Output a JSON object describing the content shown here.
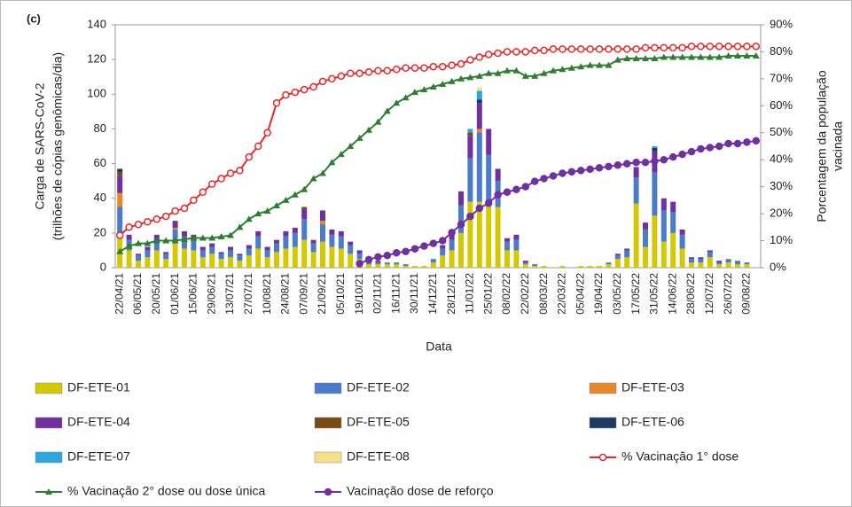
{
  "chart_data": {
    "type": "bar",
    "stacked": true,
    "title": "(c)",
    "xlabel": "Data",
    "ylabel": [
      "Carga de SARS-CoV-2",
      "(trilhões de cópias genômicas/dia)"
    ],
    "y2label": [
      "Porcentagem da população",
      "vacinada"
    ],
    "categories": [
      "22/04/21",
      null,
      "06/05/21",
      null,
      "20/05/21",
      null,
      "01/06/21",
      null,
      "15/06/21",
      null,
      "29/06/21",
      null,
      "13/07/21",
      null,
      "27/07/21",
      null,
      "10/08/21",
      null,
      "24/08/21",
      null,
      "07/09/21",
      null,
      "21/09/21",
      null,
      "05/10/21",
      null,
      "19/10/21",
      null,
      "02/11/21",
      null,
      "16/11/21",
      null,
      "30/11/21",
      null,
      "14/12/21",
      null,
      "28/12/21",
      null,
      "11/01/22",
      null,
      "25/01/22",
      null,
      "08/02/22",
      null,
      "22/02/22",
      null,
      "08/03/22",
      null,
      "22/03/22",
      null,
      "05/04/22",
      null,
      "19/04/22",
      null,
      "03/05/22",
      null,
      "17/05/22",
      null,
      "31/05/22",
      null,
      "14/06/22",
      null,
      "28/06/22",
      null,
      "12/07/22",
      null,
      "26/07/22",
      null,
      "09/08/22",
      null
    ],
    "ylim": [
      0,
      140
    ],
    "yticks": [
      0,
      20,
      40,
      60,
      80,
      100,
      120,
      140
    ],
    "y2lim": [
      0,
      90
    ],
    "y2ticks": [
      {
        "value": 0,
        "label": "0%"
      },
      {
        "value": 10,
        "label": "10%"
      },
      {
        "value": 20,
        "label": "20%"
      },
      {
        "value": 30,
        "label": "30%"
      },
      {
        "value": 40,
        "label": "40%"
      },
      {
        "value": 50,
        "label": "50%"
      },
      {
        "value": 60,
        "label": "60%"
      },
      {
        "value": 70,
        "label": "70%"
      },
      {
        "value": 80,
        "label": "80%"
      },
      {
        "value": 90,
        "label": "90%"
      }
    ],
    "series": [
      {
        "name": "DF-ETE-01",
        "color": "#d4c800",
        "values": [
          20,
          10,
          4,
          6,
          10,
          5,
          14,
          11,
          10,
          6,
          8,
          5,
          6,
          4,
          7,
          11,
          6,
          9,
          11,
          12,
          16,
          9,
          15,
          12,
          11,
          8,
          5,
          2,
          2,
          2,
          2,
          1,
          1,
          1,
          3,
          7,
          10,
          20,
          38,
          38,
          35,
          35,
          10,
          10,
          2,
          1,
          1,
          0,
          1,
          0,
          1,
          1,
          1,
          2,
          5,
          6,
          37,
          12,
          30,
          15,
          20,
          11,
          3,
          3,
          6,
          2,
          3,
          2,
          2,
          0
        ]
      },
      {
        "name": "DF-ETE-02",
        "color": "#4a7cc9",
        "values": [
          15,
          6,
          3,
          4,
          6,
          3,
          8,
          7,
          6,
          4,
          4,
          3,
          4,
          3,
          4,
          7,
          4,
          5,
          7,
          8,
          12,
          5,
          10,
          7,
          7,
          5,
          3,
          1,
          1,
          1,
          1,
          1,
          0,
          0,
          2,
          4,
          6,
          16,
          25,
          40,
          30,
          15,
          5,
          6,
          1,
          1,
          0,
          0,
          0,
          0,
          0,
          0,
          0,
          1,
          2,
          4,
          15,
          10,
          25,
          18,
          12,
          8,
          2,
          2,
          3,
          1,
          2,
          2,
          1,
          0
        ]
      },
      {
        "name": "DF-ETE-03",
        "color": "#e8862a",
        "values": [
          8,
          0,
          0,
          0,
          0,
          0,
          1,
          0,
          0,
          0,
          0,
          0,
          0,
          0,
          0,
          0,
          0,
          0,
          0,
          0,
          0,
          0,
          2,
          0,
          0,
          0,
          0,
          0,
          0,
          0,
          0,
          0,
          0,
          0,
          0,
          0,
          0,
          0,
          0,
          2,
          0,
          0,
          0,
          0,
          0,
          0,
          0,
          0,
          0,
          0,
          0,
          0,
          0,
          0,
          0,
          0,
          0,
          0,
          0,
          0,
          0,
          0,
          0,
          0,
          0,
          0,
          0,
          0,
          0,
          0
        ]
      },
      {
        "name": "DF-ETE-04",
        "color": "#7030a0",
        "values": [
          10,
          3,
          1,
          2,
          3,
          1,
          4,
          3,
          3,
          2,
          2,
          1,
          2,
          1,
          2,
          3,
          2,
          2,
          3,
          3,
          6,
          2,
          6,
          3,
          3,
          2,
          2,
          0,
          1,
          0,
          0,
          0,
          0,
          0,
          0,
          2,
          3,
          8,
          13,
          15,
          15,
          7,
          2,
          3,
          1,
          0,
          0,
          0,
          0,
          0,
          0,
          0,
          0,
          0,
          1,
          1,
          6,
          4,
          12,
          7,
          6,
          3,
          1,
          1,
          1,
          1,
          0,
          0,
          0,
          0
        ]
      },
      {
        "name": "DF-ETE-05",
        "color": "#7b4a12",
        "values": [
          2,
          0,
          0,
          0,
          0,
          0,
          0,
          0,
          0,
          0,
          0,
          0,
          0,
          0,
          0,
          0,
          0,
          0,
          0,
          0,
          1,
          0,
          0,
          0,
          0,
          0,
          0,
          0,
          0,
          0,
          0,
          0,
          0,
          0,
          0,
          0,
          0,
          0,
          2,
          0,
          0,
          0,
          0,
          0,
          0,
          0,
          0,
          0,
          0,
          0,
          0,
          0,
          0,
          0,
          0,
          0,
          0,
          0,
          0,
          0,
          0,
          0,
          0,
          0,
          0,
          0,
          0,
          0,
          0,
          0
        ]
      },
      {
        "name": "DF-ETE-06",
        "color": "#1f3864",
        "values": [
          2,
          0,
          0,
          0,
          0,
          0,
          0,
          0,
          0,
          0,
          0,
          0,
          0,
          0,
          0,
          0,
          0,
          0,
          0,
          0,
          0,
          0,
          0,
          0,
          0,
          0,
          0,
          0,
          0,
          0,
          0,
          0,
          0,
          0,
          0,
          0,
          0,
          0,
          0,
          2,
          0,
          0,
          0,
          0,
          0,
          0,
          0,
          0,
          0,
          0,
          0,
          0,
          0,
          0,
          0,
          0,
          0,
          0,
          2,
          0,
          0,
          0,
          0,
          0,
          0,
          0,
          0,
          0,
          0,
          0
        ]
      },
      {
        "name": "DF-ETE-07",
        "color": "#2aa7e0",
        "values": [
          0,
          0,
          0,
          0,
          0,
          0,
          0,
          0,
          0,
          0,
          0,
          0,
          0,
          0,
          0,
          0,
          0,
          0,
          0,
          0,
          0,
          0,
          0,
          0,
          0,
          0,
          0,
          0,
          0,
          0,
          0,
          0,
          0,
          0,
          0,
          0,
          0,
          0,
          2,
          5,
          0,
          0,
          0,
          0,
          0,
          0,
          0,
          0,
          0,
          0,
          0,
          0,
          0,
          0,
          0,
          0,
          0,
          0,
          1,
          0,
          0,
          0,
          0,
          0,
          0,
          0,
          0,
          0,
          0,
          0
        ]
      },
      {
        "name": "DF-ETE-08",
        "color": "#f5e08a",
        "values": [
          0,
          0,
          0,
          0,
          0,
          0,
          0,
          0,
          0,
          0,
          0,
          0,
          0,
          0,
          0,
          0,
          0,
          0,
          0,
          0,
          0,
          0,
          0,
          0,
          0,
          0,
          0,
          0,
          0,
          0,
          0,
          0,
          0,
          0,
          0,
          0,
          0,
          0,
          0,
          2,
          0,
          0,
          0,
          0,
          0,
          0,
          0,
          0,
          0,
          0,
          0,
          0,
          0,
          0,
          0,
          0,
          0,
          0,
          0,
          0,
          0,
          0,
          0,
          0,
          0,
          0,
          0,
          0,
          0,
          0
        ]
      },
      {
        "name": "% Vacinação 1° dose",
        "type": "line",
        "axis": "y2",
        "marker": "circle-open",
        "color": "#e8282a",
        "values": [
          12,
          15,
          16,
          17,
          18,
          19,
          21,
          22,
          25,
          28,
          31,
          33,
          35,
          36,
          41,
          45,
          50,
          61,
          64,
          65,
          66,
          67,
          69,
          70,
          71,
          72,
          72,
          72.5,
          73,
          73,
          73.5,
          74,
          74,
          74,
          74.5,
          74.5,
          75,
          75.5,
          77,
          78,
          79,
          79.5,
          80,
          80,
          80,
          80.5,
          80.5,
          81,
          81,
          81,
          81,
          81,
          81,
          81,
          81,
          81,
          81,
          81.5,
          81.5,
          81.5,
          81.5,
          81.5,
          82,
          82,
          82,
          82,
          82,
          82,
          82,
          82
        ]
      },
      {
        "name": "% Vacinação 2° dose ou dose única",
        "type": "line",
        "axis": "y2",
        "marker": "triangle",
        "color": "#2e7d32",
        "values": [
          6,
          8,
          9,
          9,
          10,
          10,
          10,
          10.5,
          11,
          11,
          11,
          11.5,
          12,
          15,
          18,
          20,
          21,
          23,
          25,
          27,
          29,
          33,
          35,
          39,
          42,
          45,
          48,
          51,
          54,
          58,
          61,
          63,
          65,
          66,
          67,
          68,
          69,
          70,
          70.5,
          71,
          72,
          72,
          73,
          73,
          71,
          71,
          72,
          73,
          73.5,
          74,
          74.5,
          75,
          75,
          75,
          77,
          77.5,
          77.5,
          77.5,
          77.5,
          78,
          78,
          78,
          78,
          78,
          78,
          78,
          78.5,
          78.5,
          78.5,
          78.5
        ]
      },
      {
        "name": "Vacinação dose de reforço",
        "type": "line",
        "axis": "y2",
        "marker": "circle",
        "color": "#7030a0",
        "values": [
          null,
          null,
          null,
          null,
          null,
          null,
          null,
          null,
          null,
          null,
          null,
          null,
          null,
          null,
          null,
          null,
          null,
          null,
          null,
          null,
          null,
          null,
          null,
          null,
          null,
          null,
          1.5,
          3,
          4,
          4.5,
          5.5,
          6,
          7,
          8,
          9,
          10,
          13,
          16,
          19,
          22,
          24,
          27,
          28,
          29,
          30,
          32,
          33,
          34,
          35,
          35.5,
          36,
          36.5,
          37,
          37.5,
          38,
          38.5,
          39,
          39,
          39.5,
          40,
          41,
          42,
          43,
          44,
          44.5,
          45,
          46,
          46,
          46.5,
          47
        ]
      }
    ]
  }
}
